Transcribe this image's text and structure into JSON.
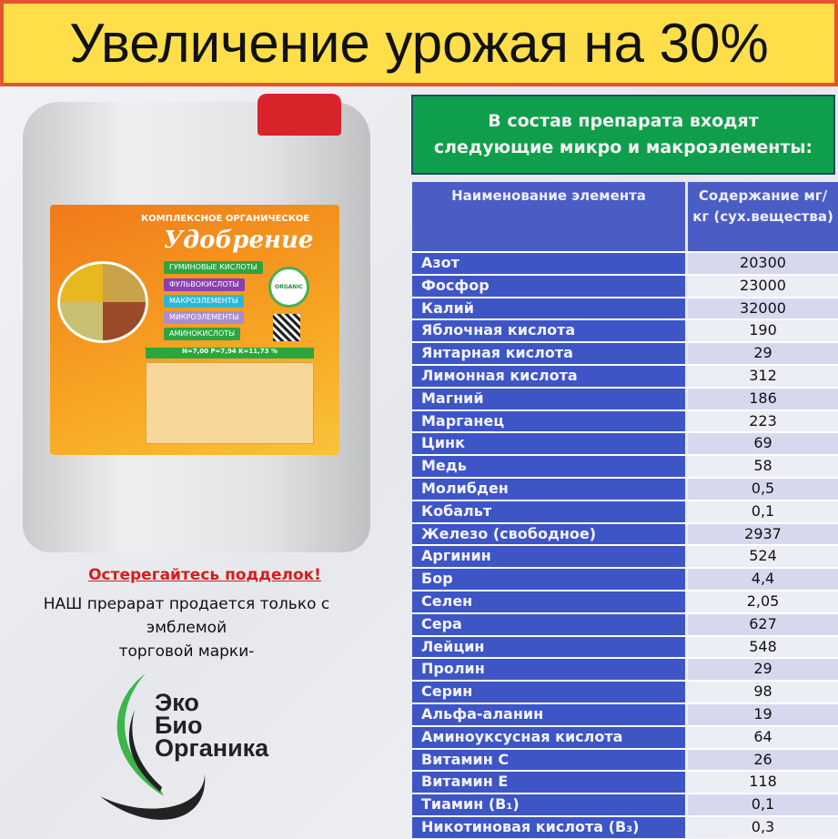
{
  "banner": {
    "title": "Увеличение урожая на 30%"
  },
  "composition": {
    "line1": "В состав препарата входят",
    "line2": "следующие микро и макроэлементы:"
  },
  "table": {
    "headers": [
      "Наименование элемента",
      "Содержание мг/кг (сух.вещества)"
    ],
    "rows": [
      [
        "Азот",
        "20300"
      ],
      [
        "Фосфор",
        "23000"
      ],
      [
        "Калий",
        "32000"
      ],
      [
        "Яблочная кислота",
        "190"
      ],
      [
        "Янтарная кислота",
        "29"
      ],
      [
        "Лимонная кислота",
        "312"
      ],
      [
        "Магний",
        "186"
      ],
      [
        "Марганец",
        "223"
      ],
      [
        "Цинк",
        "69"
      ],
      [
        "Медь",
        "58"
      ],
      [
        "Молибден",
        "0,5"
      ],
      [
        "Кобальт",
        "0,1"
      ],
      [
        "Железо (свободное)",
        "2937"
      ],
      [
        "Аргинин",
        "524"
      ],
      [
        "Бор",
        "4,4"
      ],
      [
        "Селен",
        "2,05"
      ],
      [
        "Сера",
        "627"
      ],
      [
        "Лейцин",
        "548"
      ],
      [
        "Пролин",
        "29"
      ],
      [
        "Серин",
        "98"
      ],
      [
        "Альфа-аланин",
        "19"
      ],
      [
        "Аминоуксусная кислота",
        "64"
      ],
      [
        "Витамин С",
        "26"
      ],
      [
        "Витамин Е",
        "118"
      ],
      [
        "Тиамин (B₁)",
        "0,1"
      ],
      [
        "Никотиновая кислота (B₃)",
        "0,3"
      ]
    ]
  },
  "product_label": {
    "subtitle": "КОМПЛЕКСНОЕ ОРГАНИЧЕСКОЕ",
    "title": "Удобрение",
    "items": [
      "ГУМИНОВЫЕ КИСЛОТЫ",
      "ФУЛЬВОКИСЛОТЫ",
      "МАКРОЭЛЕМЕНТЫ",
      "МИКРОЭЛЕМЕНТЫ",
      "АМИНОКИСЛОТЫ"
    ],
    "npk": "N=7,00  P=7,94  K=11,73 %",
    "badge": "ORGANIC"
  },
  "warning": {
    "title": "Остерегайтесь подделок!",
    "line1": "НАШ прерарат продается только с",
    "line2": "эмблемой",
    "line3": "торговой марки-"
  },
  "logo": {
    "words": [
      "Эко",
      "Био",
      "Органика"
    ]
  },
  "colors": {
    "banner_bg": "#fedf4a",
    "banner_border": "#e5532f",
    "green": "#0f9f4c",
    "table_blue": "#3e55c6",
    "warning_red": "#d41d1d"
  }
}
